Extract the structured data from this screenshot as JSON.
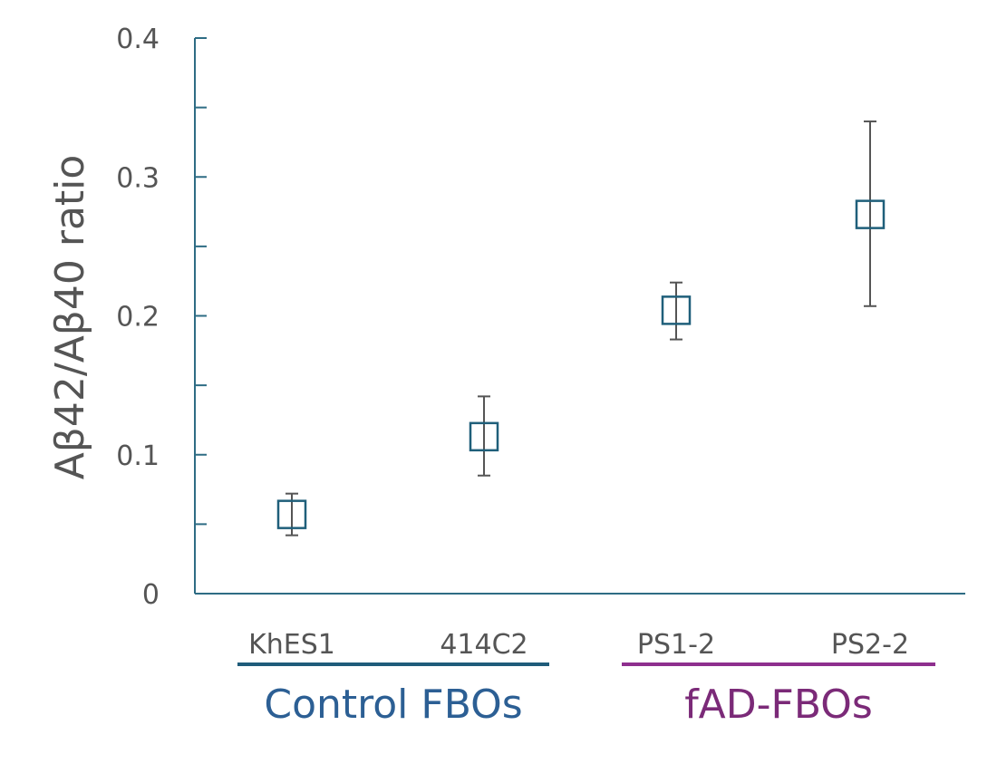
{
  "chart_data": {
    "type": "scatter",
    "title": "",
    "xlabel": "",
    "ylabel": "Aβ42/Aβ40 ratio",
    "ylim": [
      0,
      0.4
    ],
    "yticks": [
      "0",
      "0.1",
      "0.2",
      "0.3",
      "0.4"
    ],
    "grid": false,
    "marker": "open-square",
    "categories": [
      "KhES1",
      "414C2",
      "PS1-2",
      "PS2-2"
    ],
    "values": [
      0.057,
      0.113,
      0.204,
      0.273
    ],
    "error_low": [
      0.042,
      0.085,
      0.183,
      0.207
    ],
    "error_high": [
      0.072,
      0.142,
      0.224,
      0.34
    ],
    "groups": [
      {
        "label": "Control FBOs",
        "members": [
          "KhES1",
          "414C2"
        ],
        "color": "#1f5c7a",
        "text_color": "#2c5f94"
      },
      {
        "label": "fAD-FBOs",
        "members": [
          "PS1-2",
          "PS2-2"
        ],
        "color": "#8e2f8e",
        "text_color": "#7b2a78"
      }
    ],
    "colors": {
      "axis": "#2e6c84",
      "marker": "#1f5f7a",
      "error_bar": "#555555"
    }
  }
}
